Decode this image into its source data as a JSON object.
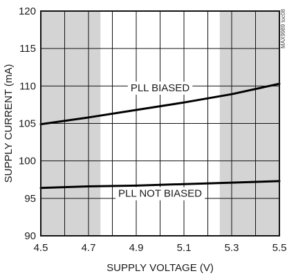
{
  "chart_data": {
    "type": "line",
    "title": "",
    "xlabel": "SUPPLY VOLTAGE (V)",
    "ylabel": "SUPPLY CURRENT (mA)",
    "xlim": [
      4.5,
      5.5
    ],
    "ylim": [
      90,
      120
    ],
    "xticks": [
      4.5,
      4.7,
      4.9,
      5.1,
      5.3,
      5.5
    ],
    "xtick_labels": [
      "4.5",
      "4.7",
      "4.9",
      "5.1",
      "5.3",
      "5.5"
    ],
    "yticks": [
      90,
      95,
      100,
      105,
      110,
      115,
      120
    ],
    "ytick_labels": [
      "90",
      "95",
      "100",
      "105",
      "110",
      "115",
      "120"
    ],
    "grid": true,
    "shaded_regions": [
      {
        "x_from": 4.5,
        "x_to": 4.75
      },
      {
        "x_from": 5.25,
        "x_to": 5.5
      }
    ],
    "series": [
      {
        "name": "PLL BIASED",
        "x": [
          4.5,
          4.7,
          4.9,
          5.1,
          5.3,
          5.5
        ],
        "y": [
          104.9,
          105.8,
          106.8,
          107.8,
          108.9,
          110.3
        ]
      },
      {
        "name": "PLL NOT BIASED",
        "x": [
          4.5,
          4.7,
          4.9,
          5.1,
          5.3,
          5.5
        ],
        "y": [
          96.4,
          96.6,
          96.7,
          96.9,
          97.1,
          97.3
        ]
      }
    ],
    "annotations": [
      {
        "text": "PLL BIASED",
        "x": 5.0,
        "y": 109.3
      },
      {
        "text": "PLL NOT BIASED",
        "x": 5.0,
        "y": 95.2
      }
    ],
    "watermark": "MAX9989 toc08"
  }
}
